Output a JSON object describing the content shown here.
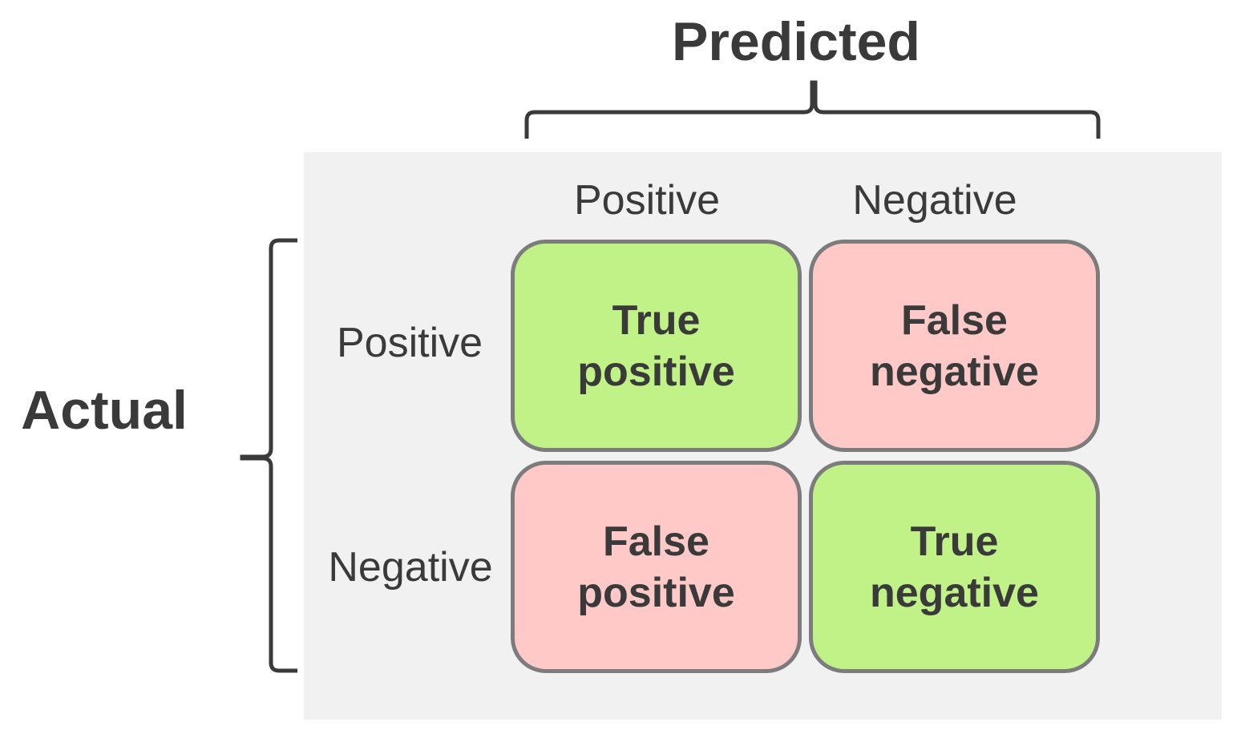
{
  "axes": {
    "predicted_title": "Predicted",
    "actual_title": "Actual",
    "predicted_columns": [
      "Positive",
      "Negative"
    ],
    "actual_rows": [
      "Positive",
      "Negative"
    ]
  },
  "cells": {
    "tp": {
      "line1": "True",
      "line2": "positive",
      "color": "#c0f288"
    },
    "fn": {
      "line1": "False",
      "line2": "negative",
      "color": "#fec9c7"
    },
    "fp": {
      "line1": "False",
      "line2": "positive",
      "color": "#fec9c7"
    },
    "tn": {
      "line1": "True",
      "line2": "negative",
      "color": "#c0f288"
    }
  },
  "colors": {
    "text": "#3a3a3a",
    "border": "#7c7c7c",
    "panel": "#f1f1f1"
  }
}
